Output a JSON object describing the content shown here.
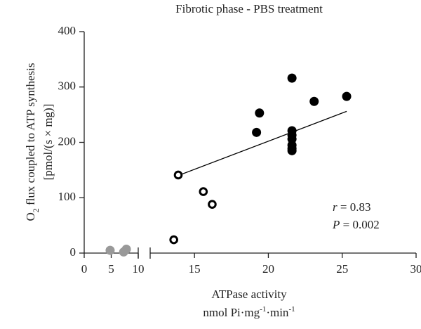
{
  "chart_data": {
    "type": "scatter",
    "title": "Fibrotic phase - PBS treatment",
    "ylabel": [
      "O",
      "2",
      " flux coupled to ATP synthesis"
    ],
    "ylabel2": "[pmol/(s × mg)]",
    "xlabel": "ATPase activity",
    "xunit": [
      "nmol Pi·mg",
      "-1",
      "·min",
      "-1"
    ],
    "ylim": [
      0,
      400
    ],
    "yticks": [
      0,
      100,
      200,
      300,
      400
    ],
    "xsegments": [
      {
        "xlim": [
          0,
          10
        ],
        "xticks": [
          0,
          5,
          10
        ]
      },
      {
        "xlim": [
          12,
          30
        ],
        "xticks": [
          15,
          20,
          25,
          30
        ]
      }
    ],
    "series": [
      {
        "color": "#999999",
        "marker": "filled",
        "x": [
          4.8,
          7.3,
          7.8
        ],
        "values": [
          5,
          2,
          7
        ]
      },
      {
        "color": "#000000",
        "marker": "open",
        "x": [
          13.9,
          15.6,
          16.2,
          13.6
        ],
        "values": [
          141,
          111,
          88,
          24
        ]
      },
      {
        "color": "#000000",
        "marker": "filled",
        "x": [
          21.6,
          19.4,
          19.2,
          23.1,
          25.3,
          21.6,
          21.6,
          21.6,
          21.6,
          21.6,
          21.6
        ],
        "values": [
          316,
          253,
          218,
          274,
          283,
          221,
          213,
          206,
          195,
          189,
          185
        ]
      }
    ],
    "fit": {
      "x": [
        13.7,
        25.3
      ],
      "values": [
        138,
        256
      ]
    },
    "annotations": [
      {
        "var": "r",
        "text": " = 0.83"
      },
      {
        "var": "P",
        "text": " = 0.002"
      }
    ]
  }
}
